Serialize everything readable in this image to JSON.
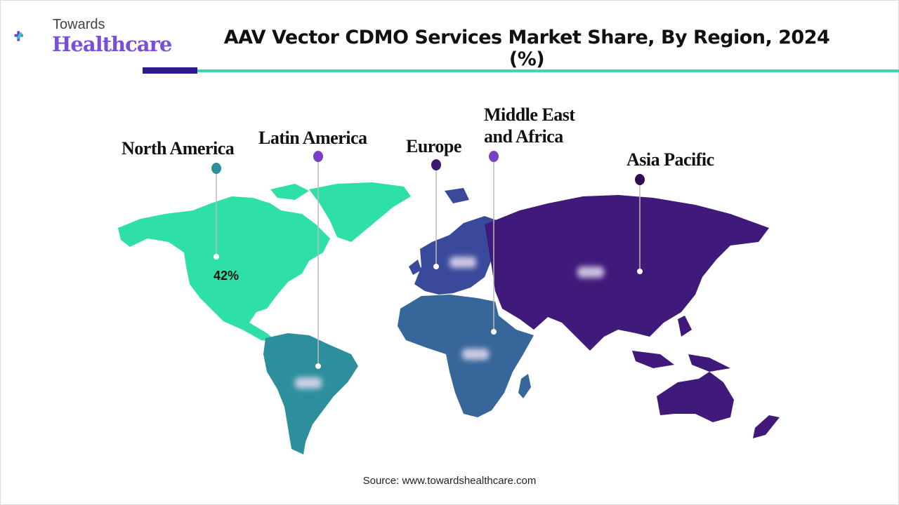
{
  "logo": {
    "top": "Towards",
    "main": "Healthcare"
  },
  "title": "AAV Vector CDMO Services Market Share, By Region, 2024 (%)",
  "source": "Source: www.towardshealthcare.com",
  "colors": {
    "north_america": "#2ee0a8",
    "latin_america": "#2d8f9c",
    "europe": "#3a4a9a",
    "middle_east_africa": "#37679a",
    "asia_pacific": "#3f1a7a",
    "accent_dark": "#2d1a8f",
    "accent_teal": "#3fd6b4"
  },
  "chart_data": {
    "type": "map",
    "title": "AAV Vector CDMO Services Market Share, By Region, 2024 (%)",
    "regions": [
      {
        "name": "North America",
        "value": 42,
        "label": "42%",
        "marker_color": "#2d8f9c"
      },
      {
        "name": "Latin America",
        "value": null,
        "marker_color": "#7b3fc4"
      },
      {
        "name": "Europe",
        "value": null,
        "marker_color": "#3a1a6e"
      },
      {
        "name": "Middle East and Africa",
        "value": null,
        "marker_color": "#7b3fc4"
      },
      {
        "name": "Asia Pacific",
        "value": null,
        "marker_color": "#2a1050"
      }
    ]
  }
}
